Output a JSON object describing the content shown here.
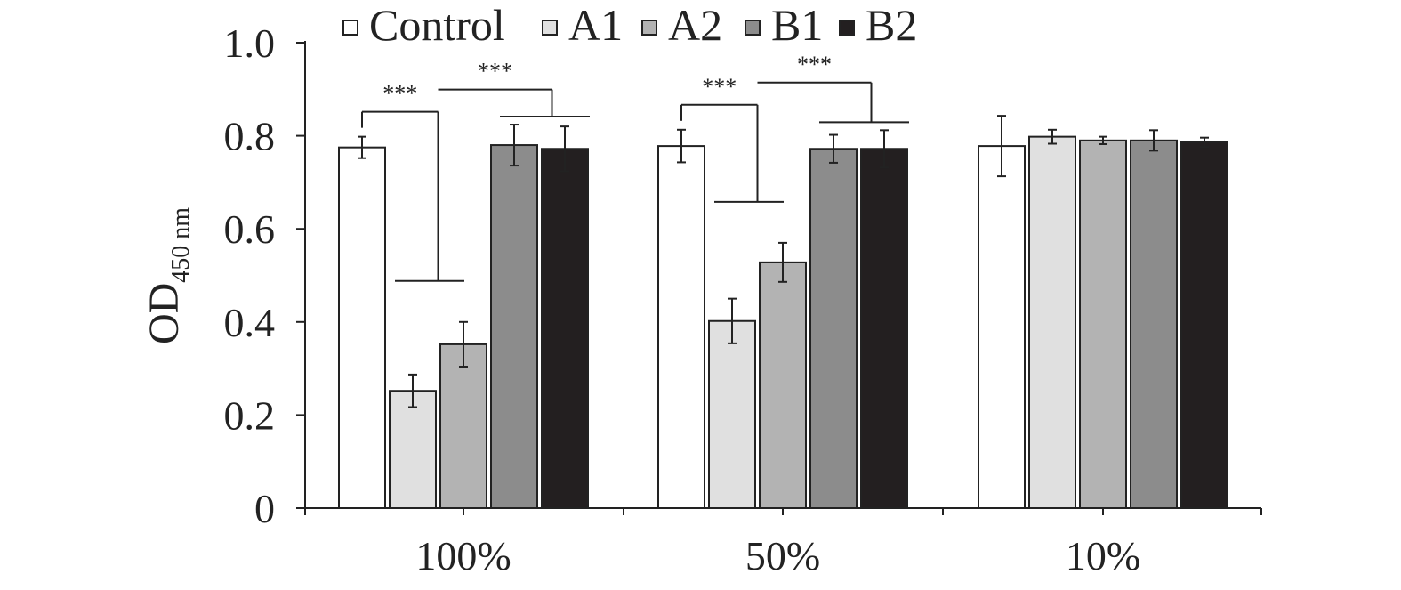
{
  "chart_data": {
    "type": "bar",
    "title": "",
    "xlabel": "",
    "ylabel": "OD",
    "ylabel_subscript": "450 nm",
    "ylim": [
      0,
      1.0
    ],
    "yticks": [
      "0",
      "0.2",
      "0.4",
      "0.6",
      "0.8",
      "1.0"
    ],
    "ytick_values": [
      0,
      0.2,
      0.4,
      0.6,
      0.8,
      1.0
    ],
    "legend_placement": "top",
    "categories": [
      "100%",
      "50%",
      "10%"
    ],
    "series": [
      {
        "name": "Control",
        "color": "#ffffff",
        "values": [
          0.775,
          0.778,
          0.778
        ],
        "errors": [
          0.023,
          0.035,
          0.065
        ]
      },
      {
        "name": "A1",
        "color": "#e0e0e0",
        "values": [
          0.252,
          0.402,
          0.798
        ],
        "errors": [
          0.035,
          0.048,
          0.015
        ]
      },
      {
        "name": "A2",
        "color": "#b3b3b3",
        "values": [
          0.352,
          0.528,
          0.79
        ],
        "errors": [
          0.048,
          0.042,
          0.008
        ]
      },
      {
        "name": "B1",
        "color": "#8c8c8c",
        "values": [
          0.78,
          0.772,
          0.79
        ],
        "errors": [
          0.044,
          0.03,
          0.022
        ]
      },
      {
        "name": "B2",
        "color": "#231f20",
        "values": [
          0.772,
          0.772,
          0.786
        ],
        "errors": [
          0.048,
          0.04,
          0.01
        ]
      }
    ],
    "significance": [
      {
        "category": "100%",
        "left_label": "***",
        "right_label": "***"
      },
      {
        "category": "50%",
        "left_label": "***",
        "right_label": "***"
      }
    ]
  }
}
